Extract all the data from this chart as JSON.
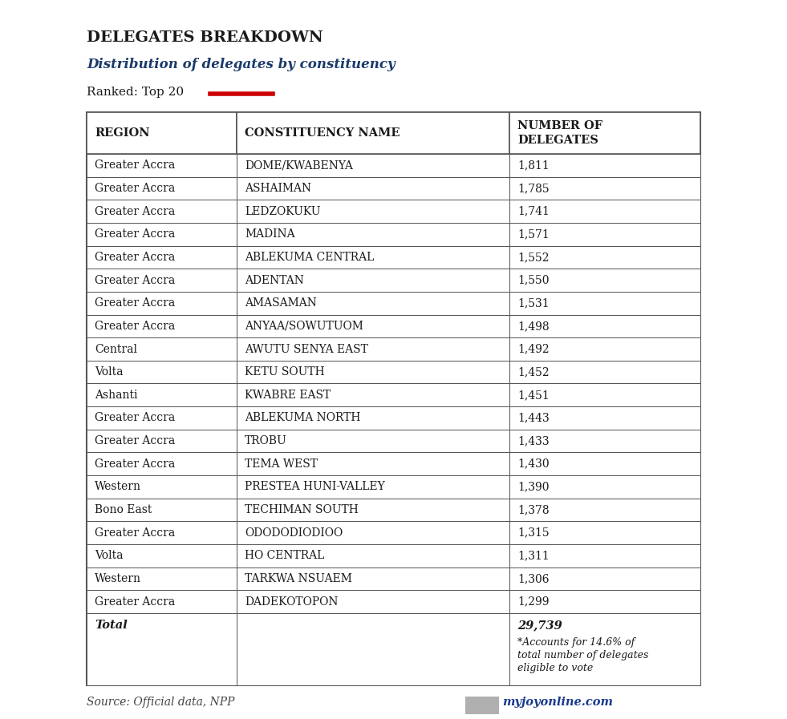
{
  "title": "DELEGATES BREAKDOWN",
  "subtitle": "Distribution of delegates by constituency",
  "ranked_label": "Ranked: Top 20",
  "rows": [
    [
      "Greater Accra",
      "DOME/KWABENYA",
      "1,811"
    ],
    [
      "Greater Accra",
      "ASHAIMAN",
      "1,785"
    ],
    [
      "Greater Accra",
      "LEDZOKUKU",
      "1,741"
    ],
    [
      "Greater Accra",
      "MADINA",
      "1,571"
    ],
    [
      "Greater Accra",
      "ABLEKUMA CENTRAL",
      "1,552"
    ],
    [
      "Greater Accra",
      "ADENTAN",
      "1,550"
    ],
    [
      "Greater Accra",
      "AMASAMAN",
      "1,531"
    ],
    [
      "Greater Accra",
      "ANYAA/SOWUTUOM",
      "1,498"
    ],
    [
      "Central",
      "AWUTU SENYA EAST",
      "1,492"
    ],
    [
      "Volta",
      "KETU SOUTH",
      "1,452"
    ],
    [
      "Ashanti",
      "KWABRE EAST",
      "1,451"
    ],
    [
      "Greater Accra",
      "ABLEKUMA NORTH",
      "1,443"
    ],
    [
      "Greater Accra",
      "TROBU",
      "1,433"
    ],
    [
      "Greater Accra",
      "TEMA WEST",
      "1,430"
    ],
    [
      "Western",
      "PRESTEA HUNI-VALLEY",
      "1,390"
    ],
    [
      "Bono East",
      "TECHIMAN SOUTH",
      "1,378"
    ],
    [
      "Greater Accra",
      "ODODODIODIOO",
      "1,315"
    ],
    [
      "Volta",
      "HO CENTRAL",
      "1,311"
    ],
    [
      "Western",
      "TARKWA NSUAEM",
      "1,306"
    ],
    [
      "Greater Accra",
      "DADEKOTOPON",
      "1,299"
    ]
  ],
  "total_label": "Total",
  "total_value": "29,739",
  "total_note1": "*Accounts for 14.6% of",
  "total_note2": "total number of delegates",
  "total_note3": "eligible to vote",
  "source_text": "Source: Official data, NPP",
  "watermark": "myjoyonline.com",
  "title_color": "#1a1a1a",
  "subtitle_color": "#1a3a6b",
  "red_line_color": "#cc0000",
  "border_color": "#555555",
  "bg_color": "#f5f5f0"
}
